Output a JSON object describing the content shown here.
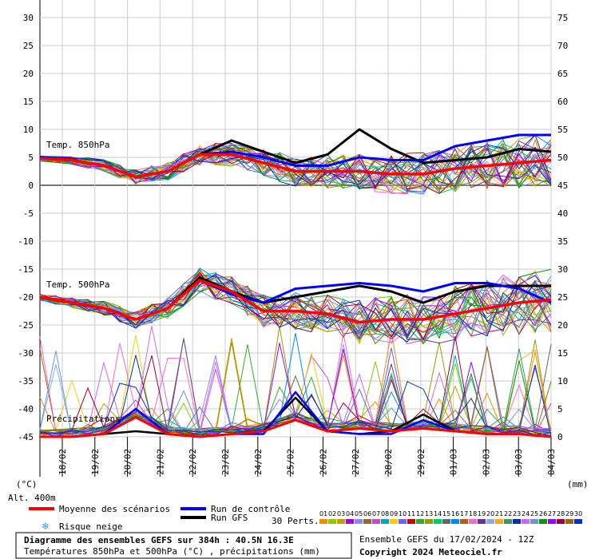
{
  "chart_data": {
    "type": "line",
    "title": "Diagramme des ensembles GEFS sur 384h : 40.5N 16.3E",
    "subtitle": "Températures 850hPa et 500hPa (°C) , précipitations (mm)",
    "run_info": "Ensemble GEFS du 17/02/2024 - 12Z",
    "copyright": "Copyright 2024 Meteociel.fr",
    "left_axis_unit": "(°C)",
    "right_axis_unit": "(mm)",
    "altitude": "Alt. 400m",
    "left_ticks": [
      30,
      25,
      20,
      15,
      10,
      5,
      0,
      -5,
      -10,
      -15,
      -20,
      -25,
      -30,
      -35,
      -40,
      -45
    ],
    "right_ticks": [
      75,
      70,
      65,
      60,
      55,
      50,
      45,
      40,
      35,
      30,
      25,
      20,
      15,
      10,
      5,
      0
    ],
    "ylim_temp": [
      -45,
      30
    ],
    "ylim_precip": [
      0,
      75
    ],
    "x_labels": [
      "18/02",
      "19/02",
      "20/02",
      "21/02",
      "22/02",
      "23/02",
      "24/02",
      "25/02",
      "26/02",
      "27/02",
      "28/02",
      "29/02",
      "01/03",
      "02/03",
      "03/03",
      "04/03"
    ],
    "t850_label": "Temp. 850hPa",
    "t500_label": "Temp. 500hPa",
    "precip_label": "Précipitations",
    "legend": {
      "mean": "Moyenne des scénarios",
      "control": "Run de contrôle",
      "gfs": "Run GFS",
      "snow": "Risque neige",
      "perts_label": "30 Perts.",
      "perts_numbers": [
        "01",
        "02",
        "03",
        "04",
        "05",
        "06",
        "07",
        "08",
        "09",
        "10",
        "11",
        "12",
        "13",
        "14",
        "15",
        "16",
        "17",
        "18",
        "19",
        "20",
        "21",
        "22",
        "23",
        "24",
        "25",
        "26",
        "27",
        "28",
        "29",
        "30"
      ]
    },
    "colors": {
      "mean": "#ff0000",
      "control": "#0000ff",
      "gfs": "#000000",
      "perts": [
        "#ff8800",
        "#88cc00",
        "#cc9900",
        "#aa00cc",
        "#8888ff",
        "#996633",
        "#cc44cc",
        "#00aaaa",
        "#ffcc00",
        "#6666ff",
        "#cc0000",
        "#33aa33",
        "#999900",
        "#00cc66",
        "#666666",
        "#0088ff",
        "#aa6600",
        "#ff66cc",
        "#663399",
        "#88aaff",
        "#ffaa00",
        "#339966",
        "#003399",
        "#cc66ff",
        "#6699cc",
        "#009900",
        "#9900ff",
        "#990033",
        "#996600",
        "#0033cc"
      ]
    },
    "x_hours": [
      0,
      24,
      48,
      72,
      96,
      120,
      144,
      168,
      192,
      216,
      240,
      264,
      288,
      312,
      336,
      360,
      384
    ],
    "series": [
      {
        "name": "Moyenne des scénarios",
        "t850": [
          4.8,
          4.5,
          3.5,
          1.5,
          2.5,
          5.5,
          5.5,
          4.0,
          2.5,
          2.5,
          2.5,
          2.0,
          2.0,
          3.0,
          3.5,
          4.0,
          4.5
        ],
        "t500": [
          -20,
          -21,
          -22,
          -24,
          -22,
          -17,
          -19,
          -22.5,
          -22.5,
          -23,
          -24.5,
          -24,
          -24,
          -23,
          -22,
          -21,
          -20.5
        ],
        "precip": [
          0,
          0,
          0.5,
          3.5,
          0.5,
          0,
          0.5,
          1,
          3,
          1,
          1.5,
          1,
          1.5,
          1,
          0.5,
          0.5,
          0
        ]
      },
      {
        "name": "Run de contrôle",
        "t850": [
          5,
          4.5,
          3.5,
          1.5,
          2.5,
          5.5,
          6,
          5,
          3.5,
          3.5,
          5,
          4.5,
          4.5,
          7,
          8,
          9,
          9
        ],
        "t500": [
          -20,
          -21,
          -22,
          -24,
          -22,
          -17,
          -19.5,
          -21,
          -18.5,
          -18,
          -17.5,
          -18,
          -19,
          -17.5,
          -17.5,
          -18.5,
          -21
        ],
        "precip": [
          0,
          0,
          0.5,
          5,
          0.5,
          0,
          0.5,
          0.5,
          8,
          1,
          0.5,
          0.5,
          3,
          1,
          0.5,
          0.5,
          0
        ]
      },
      {
        "name": "Run GFS",
        "t850": [
          5,
          4.5,
          3.5,
          1.5,
          2.5,
          5.5,
          8,
          6,
          4,
          5.5,
          10,
          6.5,
          4,
          4.5,
          5,
          6.5,
          6
        ],
        "t500": [
          -20,
          -21,
          -22,
          -24,
          -22,
          -16.5,
          -19,
          -21,
          -20,
          -19,
          -18,
          -19,
          -21,
          -19,
          -18,
          -18,
          -18
        ],
        "precip": [
          0,
          0,
          0.5,
          1,
          0.5,
          0,
          0.5,
          1,
          7,
          1,
          0.5,
          1,
          4,
          1,
          0.5,
          0.5,
          0
        ]
      }
    ]
  }
}
